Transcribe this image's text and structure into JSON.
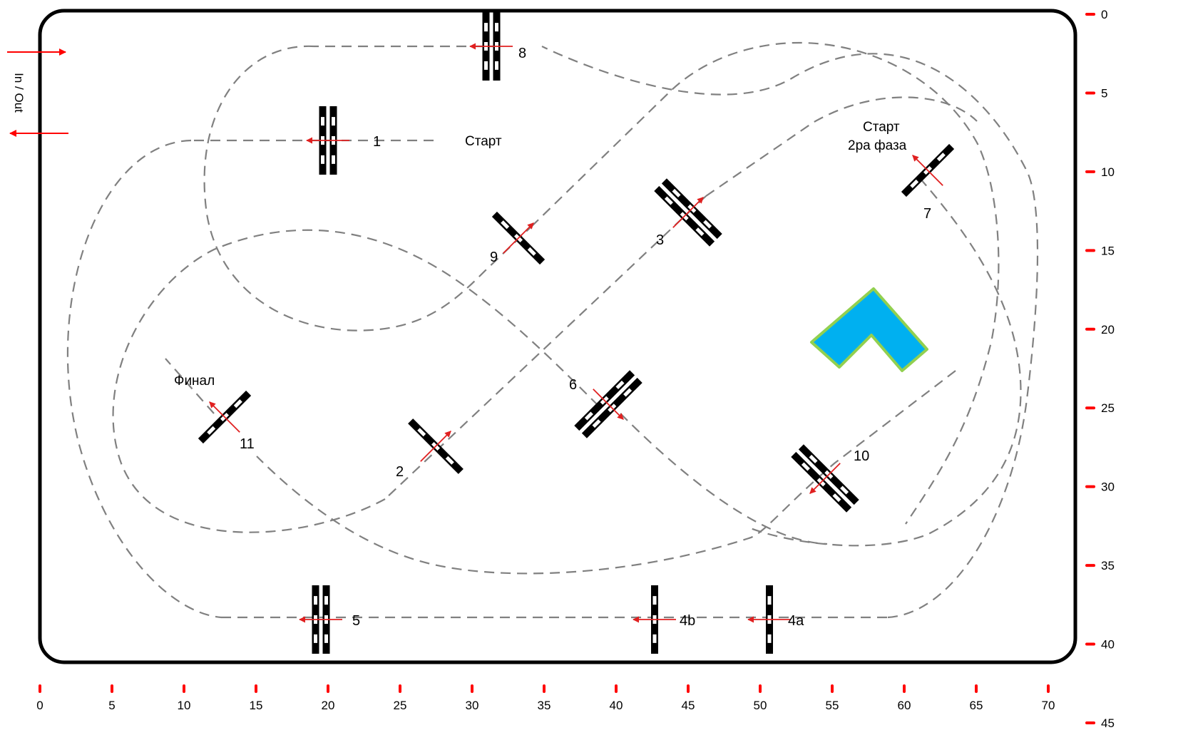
{
  "course": {
    "entry_label": "In / Out",
    "colors": {
      "border": "#000000",
      "path": "#808080",
      "gate_bar": "#000000",
      "gate_mark": "#ffffff",
      "direction_arrow": "#e02020",
      "tick": "#ff0000",
      "pond_fill": "#00b0f0",
      "pond_stroke": "#92d050"
    },
    "x_axis": {
      "ticks": [
        "0",
        "5",
        "10",
        "15",
        "20",
        "25",
        "30",
        "35",
        "40",
        "45",
        "50",
        "55",
        "60",
        "65",
        "70"
      ]
    },
    "y_axis": {
      "ticks": [
        "0",
        "5",
        "10",
        "15",
        "20",
        "25",
        "30",
        "35",
        "40",
        "45"
      ]
    },
    "gates": [
      {
        "id": "1",
        "label": "1"
      },
      {
        "id": "2",
        "label": "2"
      },
      {
        "id": "3",
        "label": "3"
      },
      {
        "id": "4a",
        "label": "4a"
      },
      {
        "id": "4b",
        "label": "4b"
      },
      {
        "id": "5",
        "label": "5"
      },
      {
        "id": "6",
        "label": "6"
      },
      {
        "id": "7",
        "label": "7"
      },
      {
        "id": "8",
        "label": "8"
      },
      {
        "id": "9",
        "label": "9"
      },
      {
        "id": "10",
        "label": "10"
      },
      {
        "id": "11",
        "label": "11"
      }
    ],
    "annotations": {
      "start": "Старт",
      "start_phase2_line1": "Старт",
      "start_phase2_line2": "2ра фаза",
      "final": "Финал"
    }
  }
}
